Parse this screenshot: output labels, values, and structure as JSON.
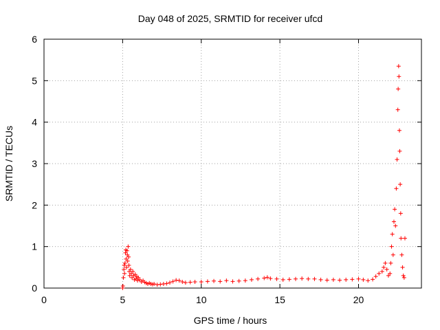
{
  "chart_data": {
    "type": "scatter",
    "title": "Day 048 of 2025, SRMTID for receiver ufcd",
    "xlabel": "GPS time / hours",
    "ylabel": "SRMTID / TECUs",
    "xlim": [
      0,
      24
    ],
    "ylim": [
      0,
      6
    ],
    "xticks": [
      "0",
      "5",
      "10",
      "15",
      "20"
    ],
    "yticks": [
      "0",
      "1",
      "2",
      "3",
      "4",
      "5",
      "6"
    ],
    "grid": true,
    "marker": "+",
    "marker_color": "#ff0000",
    "series": [
      {
        "points": [
          [
            5.0,
            0.0
          ],
          [
            5.02,
            0.05
          ],
          [
            5.05,
            0.25
          ],
          [
            5.08,
            0.45
          ],
          [
            5.1,
            0.55
          ],
          [
            5.12,
            0.35
          ],
          [
            5.15,
            0.6
          ],
          [
            5.18,
            0.85
          ],
          [
            5.2,
            0.92
          ],
          [
            5.22,
            0.7
          ],
          [
            5.25,
            0.5
          ],
          [
            5.28,
            0.9
          ],
          [
            5.3,
            0.8
          ],
          [
            5.32,
            0.65
          ],
          [
            5.35,
            1.0
          ],
          [
            5.38,
            0.75
          ],
          [
            5.4,
            0.55
          ],
          [
            5.42,
            0.4
          ],
          [
            5.45,
            0.3
          ],
          [
            5.5,
            0.45
          ],
          [
            5.55,
            0.35
          ],
          [
            5.6,
            0.25
          ],
          [
            5.65,
            0.4
          ],
          [
            5.7,
            0.3
          ],
          [
            5.75,
            0.2
          ],
          [
            5.8,
            0.33
          ],
          [
            5.85,
            0.22
          ],
          [
            5.9,
            0.28
          ],
          [
            5.95,
            0.18
          ],
          [
            6.0,
            0.25
          ],
          [
            6.1,
            0.2
          ],
          [
            6.2,
            0.15
          ],
          [
            6.3,
            0.18
          ],
          [
            6.4,
            0.14
          ],
          [
            6.5,
            0.12
          ],
          [
            6.6,
            0.1
          ],
          [
            6.7,
            0.12
          ],
          [
            6.8,
            0.1
          ],
          [
            6.9,
            0.09
          ],
          [
            7.0,
            0.1
          ],
          [
            7.2,
            0.08
          ],
          [
            7.4,
            0.09
          ],
          [
            7.6,
            0.1
          ],
          [
            7.8,
            0.11
          ],
          [
            8.0,
            0.13
          ],
          [
            8.2,
            0.16
          ],
          [
            8.4,
            0.19
          ],
          [
            8.6,
            0.18
          ],
          [
            8.8,
            0.15
          ],
          [
            9.0,
            0.13
          ],
          [
            9.3,
            0.14
          ],
          [
            9.6,
            0.15
          ],
          [
            10.0,
            0.15
          ],
          [
            10.4,
            0.16
          ],
          [
            10.8,
            0.17
          ],
          [
            11.2,
            0.16
          ],
          [
            11.6,
            0.18
          ],
          [
            12.0,
            0.16
          ],
          [
            12.4,
            0.17
          ],
          [
            12.8,
            0.18
          ],
          [
            13.2,
            0.2
          ],
          [
            13.6,
            0.22
          ],
          [
            14.0,
            0.24
          ],
          [
            14.2,
            0.26
          ],
          [
            14.4,
            0.23
          ],
          [
            14.8,
            0.22
          ],
          [
            15.2,
            0.2
          ],
          [
            15.6,
            0.21
          ],
          [
            16.0,
            0.22
          ],
          [
            16.4,
            0.23
          ],
          [
            16.8,
            0.22
          ],
          [
            17.2,
            0.22
          ],
          [
            17.6,
            0.2
          ],
          [
            18.0,
            0.19
          ],
          [
            18.4,
            0.2
          ],
          [
            18.8,
            0.19
          ],
          [
            19.2,
            0.2
          ],
          [
            19.6,
            0.21
          ],
          [
            20.0,
            0.22
          ],
          [
            20.3,
            0.2
          ],
          [
            20.6,
            0.18
          ],
          [
            20.9,
            0.21
          ],
          [
            21.1,
            0.28
          ],
          [
            21.3,
            0.35
          ],
          [
            21.5,
            0.4
          ],
          [
            21.6,
            0.5
          ],
          [
            21.7,
            0.6
          ],
          [
            21.8,
            0.45
          ],
          [
            21.9,
            0.3
          ],
          [
            22.0,
            0.35
          ],
          [
            22.05,
            0.6
          ],
          [
            22.1,
            1.0
          ],
          [
            22.15,
            1.3
          ],
          [
            22.2,
            0.8
          ],
          [
            22.25,
            1.6
          ],
          [
            22.3,
            1.9
          ],
          [
            22.35,
            1.5
          ],
          [
            22.4,
            2.4
          ],
          [
            22.45,
            3.1
          ],
          [
            22.5,
            4.3
          ],
          [
            22.52,
            4.8
          ],
          [
            22.55,
            5.35
          ],
          [
            22.57,
            5.1
          ],
          [
            22.6,
            3.8
          ],
          [
            22.62,
            3.3
          ],
          [
            22.65,
            2.5
          ],
          [
            22.68,
            1.8
          ],
          [
            22.7,
            1.2
          ],
          [
            22.75,
            0.8
          ],
          [
            22.8,
            0.5
          ],
          [
            22.85,
            0.3
          ],
          [
            22.9,
            0.25
          ],
          [
            22.95,
            1.2
          ]
        ]
      }
    ]
  }
}
